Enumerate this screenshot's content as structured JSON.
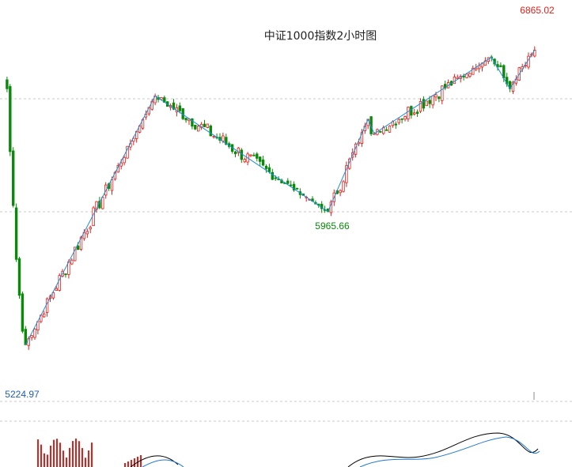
{
  "chart_data": {
    "type": "candlestick",
    "title": "中证1000指数2小时图",
    "price_range": [
      4980,
      7100
    ],
    "colors": {
      "up": "#e0201b",
      "down": "#0a8a0a",
      "wave": "#1b8fd8",
      "grid": "#c8c8c8",
      "macd": "#000000",
      "signal": "#1f77d4",
      "high_label": "#e0201b",
      "low_label": "#0a8a0a",
      "start_label": "#1f5fb0"
    },
    "annotations": {
      "low": "5224.97",
      "mid_low": "5965.66",
      "high": "6865.02"
    },
    "wave_points": [
      {
        "index": 7,
        "price": 5225
      },
      {
        "index": 49,
        "price": 6610
      },
      {
        "index": 105,
        "price": 5966
      },
      {
        "index": 118,
        "price": 6480
      },
      {
        "index": 120,
        "price": 6400
      },
      {
        "index": 158,
        "price": 6825
      },
      {
        "index": 164,
        "price": 6650
      },
      {
        "index": 172,
        "price": 6865
      }
    ],
    "grid": "dashed horizontal",
    "indicator": "MACD"
  }
}
